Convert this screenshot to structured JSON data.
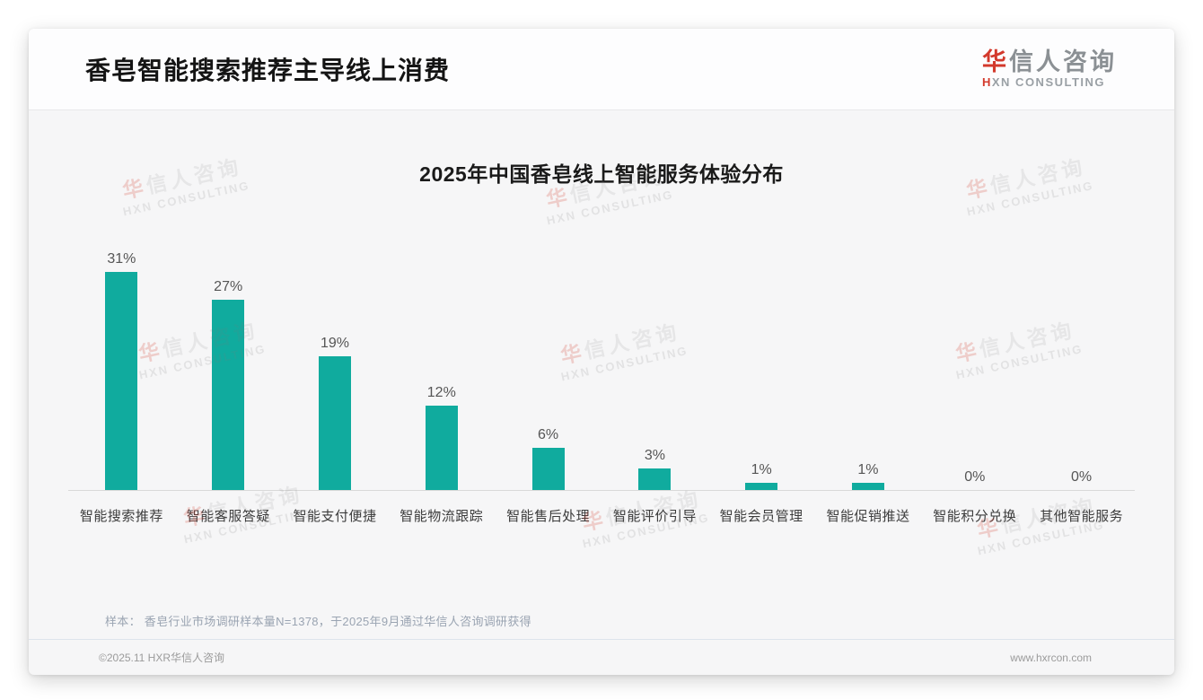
{
  "page": {
    "title": "香皂智能搜索推荐主导线上消费",
    "logo": {
      "zh_first": "华",
      "zh_rest": "信人咨询",
      "en_first": "H",
      "en_rest": "XN CONSULTING"
    },
    "note": "样本： 香皂行业市场调研样本量N=1378，于2025年9月通过华信人咨询调研获得",
    "footer": {
      "copyright": "©2025.11 HXR华信人咨询",
      "website": "www.hxrcon.com"
    },
    "watermark": {
      "zh_first": "华",
      "zh_rest": "信人咨询",
      "en": "HXN CONSULTING"
    }
  },
  "chart_data": {
    "type": "bar",
    "title": "2025年中国香皂线上智能服务体验分布",
    "categories": [
      "智能搜索推荐",
      "智能客服答疑",
      "智能支付便捷",
      "智能物流跟踪",
      "智能售后处理",
      "智能评价引导",
      "智能会员管理",
      "智能促销推送",
      "智能积分兑换",
      "其他智能服务"
    ],
    "values": [
      31,
      27,
      19,
      12,
      6,
      3,
      1,
      1,
      0,
      0
    ],
    "value_labels": [
      "31%",
      "27%",
      "19%",
      "12%",
      "6%",
      "3%",
      "1%",
      "1%",
      "0%",
      "0%"
    ],
    "xlabel": "",
    "ylabel": "",
    "ylim": [
      0,
      36
    ],
    "grid": false,
    "legend": false,
    "bar_color": "#10ab9e",
    "axis_line_color": "#d9d9d9"
  }
}
